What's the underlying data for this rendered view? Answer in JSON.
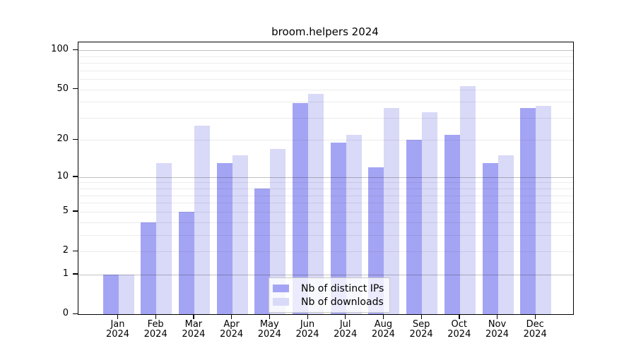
{
  "title": "broom.helpers 2024",
  "colors": {
    "bar_distinct_ips": "#a4a4f4",
    "bar_downloads": "#d9d9f8",
    "grid_minor": "rgba(0,0,0,0.075)",
    "grid_major": "rgba(0,0,0,0.24)",
    "axis": "#000000"
  },
  "legend": {
    "item1": "Nb of distinct IPs",
    "item2": "Nb of downloads"
  },
  "chart_data": {
    "type": "bar",
    "title": "broom.helpers 2024",
    "categories": [
      "Jan",
      "Feb",
      "Mar",
      "Apr",
      "May",
      "Jun",
      "Jul",
      "Aug",
      "Sep",
      "Oct",
      "Nov",
      "Dec"
    ],
    "category_year": "2024",
    "series": [
      {
        "name": "Nb of distinct IPs",
        "values": [
          1,
          4,
          5,
          13,
          8,
          39,
          19,
          12,
          20,
          22,
          13,
          36
        ]
      },
      {
        "name": "Nb of downloads",
        "values": [
          1,
          13,
          26,
          15,
          17,
          46,
          22,
          36,
          33,
          53,
          15,
          37
        ]
      }
    ],
    "y_scale": "log1p",
    "y_ticks": [
      100,
      50,
      20,
      10,
      5,
      2,
      1,
      0
    ],
    "y_grid_minor": [
      2,
      3,
      4,
      5,
      6,
      7,
      8,
      9,
      20,
      30,
      40,
      50,
      60,
      70,
      80,
      90
    ],
    "y_grid_major": [
      1,
      10,
      100
    ],
    "ylim": [
      0,
      110
    ],
    "grid": "horizontal",
    "legend_position": "bottom-center-inside"
  }
}
